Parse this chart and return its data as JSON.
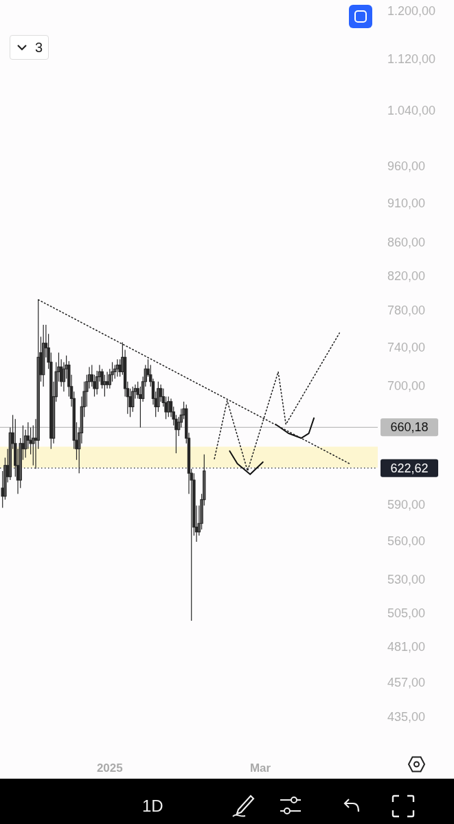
{
  "chart_data": {
    "type": "candlestick",
    "log": true,
    "legend": false,
    "x": [
      "2024-11-20",
      "2024-11-21",
      "2024-11-22",
      "2024-11-23",
      "2024-11-24",
      "2024-11-25",
      "2024-11-26",
      "2024-11-27",
      "2024-11-28",
      "2024-11-29",
      "2024-11-30",
      "2024-12-01",
      "2024-12-02",
      "2024-12-03",
      "2024-12-04",
      "2024-12-05",
      "2024-12-06",
      "2024-12-07",
      "2024-12-08",
      "2024-12-09",
      "2024-12-10",
      "2024-12-11",
      "2024-12-12",
      "2024-12-13",
      "2024-12-14",
      "2024-12-15",
      "2024-12-16",
      "2024-12-17",
      "2024-12-18",
      "2024-12-19",
      "2024-12-20",
      "2024-12-21",
      "2024-12-22",
      "2024-12-23",
      "2024-12-24",
      "2024-12-25",
      "2024-12-26",
      "2024-12-27",
      "2024-12-28",
      "2024-12-29",
      "2024-12-30",
      "2024-12-31",
      "2025-01-01",
      "2025-01-02",
      "2025-01-03",
      "2025-01-04",
      "2025-01-05",
      "2025-01-06",
      "2025-01-07",
      "2025-01-08",
      "2025-01-09",
      "2025-01-10",
      "2025-01-11",
      "2025-01-12",
      "2025-01-13",
      "2025-01-14",
      "2025-01-15",
      "2025-01-16",
      "2025-01-17",
      "2025-01-18",
      "2025-01-19",
      "2025-01-20",
      "2025-01-21",
      "2025-01-22",
      "2025-01-23",
      "2025-01-24",
      "2025-01-25",
      "2025-01-26",
      "2025-01-27",
      "2025-01-28",
      "2025-01-29",
      "2025-01-30",
      "2025-01-31",
      "2025-02-01",
      "2025-02-02",
      "2025-02-03",
      "2025-02-04",
      "2025-02-05",
      "2025-02-06",
      "2025-02-07"
    ],
    "ohlc": [
      [
        605,
        620,
        588,
        598
      ],
      [
        598,
        632,
        595,
        625
      ],
      [
        625,
        640,
        610,
        615
      ],
      [
        615,
        660,
        612,
        655
      ],
      [
        655,
        672,
        640,
        645
      ],
      [
        645,
        668,
        615,
        625
      ],
      [
        625,
        640,
        600,
        612
      ],
      [
        612,
        650,
        605,
        645
      ],
      [
        645,
        662,
        630,
        640
      ],
      [
        640,
        658,
        632,
        652
      ],
      [
        652,
        665,
        640,
        648
      ],
      [
        648,
        660,
        635,
        645
      ],
      [
        645,
        662,
        625,
        650
      ],
      [
        650,
        668,
        622,
        648
      ],
      [
        648,
        793,
        640,
        730
      ],
      [
        735,
        752,
        705,
        712
      ],
      [
        712,
        765,
        700,
        745
      ],
      [
        745,
        765,
        730,
        740
      ],
      [
        740,
        755,
        718,
        725
      ],
      [
        725,
        735,
        640,
        650
      ],
      [
        650,
        705,
        645,
        690
      ],
      [
        690,
        725,
        685,
        715
      ],
      [
        715,
        735,
        705,
        720
      ],
      [
        720,
        728,
        700,
        705
      ],
      [
        705,
        725,
        695,
        718
      ],
      [
        718,
        732,
        708,
        722
      ],
      [
        722,
        726,
        690,
        700
      ],
      [
        700,
        712,
        680,
        688
      ],
      [
        688,
        695,
        640,
        648
      ],
      [
        648,
        665,
        630,
        640
      ],
      [
        640,
        660,
        618,
        655
      ],
      [
        655,
        690,
        645,
        680
      ],
      [
        680,
        705,
        670,
        695
      ],
      [
        695,
        712,
        680,
        705
      ],
      [
        705,
        720,
        698,
        712
      ],
      [
        712,
        722,
        700,
        705
      ],
      [
        705,
        712,
        690,
        698
      ],
      [
        698,
        716,
        692,
        710
      ],
      [
        710,
        722,
        705,
        715
      ],
      [
        715,
        718,
        698,
        702
      ],
      [
        702,
        712,
        690,
        705
      ],
      [
        705,
        715,
        698,
        702
      ],
      [
        702,
        718,
        698,
        712
      ],
      [
        712,
        725,
        705,
        715
      ],
      [
        715,
        722,
        708,
        718
      ],
      [
        718,
        728,
        710,
        722
      ],
      [
        722,
        728,
        710,
        715
      ],
      [
        715,
        746,
        712,
        730
      ],
      [
        730,
        738,
        690,
        698
      ],
      [
        698,
        705,
        673,
        690
      ],
      [
        690,
        698,
        670,
        680
      ],
      [
        680,
        700,
        675,
        695
      ],
      [
        695,
        702,
        688,
        698
      ],
      [
        698,
        705,
        688,
        692
      ],
      [
        692,
        700,
        660,
        688
      ],
      [
        688,
        710,
        685,
        705
      ],
      [
        705,
        722,
        700,
        718
      ],
      [
        718,
        728,
        710,
        712
      ],
      [
        712,
        722,
        700,
        705
      ],
      [
        705,
        708,
        682,
        688
      ],
      [
        688,
        695,
        670,
        680
      ],
      [
        680,
        705,
        675,
        698
      ],
      [
        698,
        702,
        685,
        690
      ],
      [
        690,
        698,
        680,
        684
      ],
      [
        684,
        690,
        668,
        675
      ],
      [
        675,
        690,
        670,
        685
      ],
      [
        685,
        688,
        670,
        675
      ],
      [
        675,
        680,
        662,
        668
      ],
      [
        668,
        672,
        636,
        658
      ],
      [
        658,
        670,
        652,
        665
      ],
      [
        665,
        678,
        660,
        672
      ],
      [
        672,
        685,
        668,
        678
      ],
      [
        678,
        682,
        645,
        650
      ],
      [
        650,
        655,
        600,
        618
      ],
      [
        618,
        622,
        500,
        612
      ],
      [
        612,
        618,
        565,
        572
      ],
      [
        572,
        590,
        560,
        568
      ],
      [
        568,
        590,
        565,
        575
      ],
      [
        575,
        600,
        570,
        595
      ],
      [
        595,
        635,
        590,
        620
      ]
    ],
    "series": [
      {
        "type": "line",
        "color": "#222222",
        "line_style": "dotted",
        "marker": "none",
        "x": [
          "2024-12-04",
          "2025-04-05"
        ],
        "values": [
          793,
          626.5
        ]
      },
      {
        "type": "line",
        "color": "#222222",
        "line_style": "dotted",
        "marker": "none",
        "x": [
          "2025-02-11",
          "2025-02-16",
          "2025-02-24",
          "2025-03-08",
          "2025-03-11",
          "2025-04-01"
        ],
        "values": [
          631,
          686,
          620,
          715,
          663,
          756
        ]
      },
      {
        "type": "line",
        "color": "#111111",
        "line_style": "solid",
        "marker": "none",
        "x": [
          "2025-02-17",
          "2025-02-20",
          "2025-02-25",
          "2025-03-02"
        ],
        "values": [
          638,
          626.5,
          617,
          628
        ]
      },
      {
        "type": "line",
        "color": "#111111",
        "line_style": "solid",
        "marker": "none",
        "x": [
          "2025-03-07",
          "2025-03-12",
          "2025-03-17",
          "2025-03-20",
          "2025-03-22"
        ],
        "values": [
          663,
          654.5,
          650,
          654.5,
          669
        ]
      }
    ],
    "xlim": [
      "2024-11-19",
      "2025-04-16"
    ],
    "xticks": [
      {
        "value": "2025-01-01",
        "label": "2025"
      },
      {
        "value": "2025-03-01",
        "label": "Mar"
      }
    ],
    "ylim": [
      435,
      1200
    ],
    "yticks": [
      {
        "value": 1200,
        "label": "1.200,00"
      },
      {
        "value": 1120,
        "label": "1.120,00"
      },
      {
        "value": 1040,
        "label": "1.040,00"
      },
      {
        "value": 960,
        "label": "960,00"
      },
      {
        "value": 910,
        "label": "910,00"
      },
      {
        "value": 860,
        "label": "860,00"
      },
      {
        "value": 820,
        "label": "820,00"
      },
      {
        "value": 780,
        "label": "780,00"
      },
      {
        "value": 740,
        "label": "740,00"
      },
      {
        "value": 700,
        "label": "700,00"
      },
      {
        "value": 590,
        "label": "590,00"
      },
      {
        "value": 560,
        "label": "560,00"
      },
      {
        "value": 530,
        "label": "530,00"
      },
      {
        "value": 505,
        "label": "505,00"
      },
      {
        "value": 481,
        "label": "481,00"
      },
      {
        "value": 457,
        "label": "457,00"
      },
      {
        "value": 435,
        "label": "435,00"
      }
    ],
    "ref_lines": [
      {
        "axis": "y",
        "value": 660.18,
        "label": "660,18",
        "color": "#bdbdbd",
        "line_style": "solid"
      },
      {
        "axis": "y",
        "value": 622.62,
        "label": "622,62",
        "color": "#1e222d",
        "line_style": "dotted"
      }
    ],
    "bands": [
      {
        "axis": "y",
        "from": 623,
        "to": 642,
        "color": "#fdf6d0"
      }
    ],
    "annotations": [
      "3",
      "1D"
    ]
  }
}
